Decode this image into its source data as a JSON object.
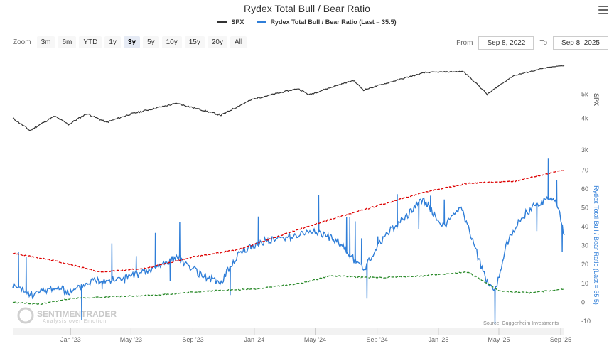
{
  "title": "Rydex Total Bull / Bear Ratio",
  "legend": [
    {
      "name": "SPX",
      "color": "#333333"
    },
    {
      "name": "Rydex Total Bull / Bear Ratio (Last = 35.5)",
      "color": "#2f7ed8"
    }
  ],
  "zoom": {
    "label": "Zoom",
    "buttons": [
      "3m",
      "6m",
      "YTD",
      "1y",
      "3y",
      "5y",
      "10y",
      "15y",
      "20y",
      "All"
    ],
    "active": "3y"
  },
  "range": {
    "from_label": "From",
    "from_value": "Sep 8, 2022",
    "to_label": "To",
    "to_value": "Sep 8, 2025"
  },
  "source": "Source: Guggenheim Investments",
  "watermark": {
    "line1": "SENTIMENTRADER",
    "line2": "Analysis over Emotion"
  },
  "chart_data": {
    "type": "line",
    "x_tick_labels": [
      "Jan '23",
      "May '23",
      "Sep '23",
      "Jan '24",
      "May '24",
      "Sep '24",
      "Jan '25",
      "May '25",
      "Sep '25"
    ],
    "x_range": [
      "2022-09-08",
      "2025-09-08"
    ],
    "panes": [
      {
        "name": "spx",
        "ylabel": "SPX",
        "scale": "log",
        "y_ticks": [
          3000,
          4000,
          5000
        ],
        "y_tick_labels": [
          "3k",
          "4k",
          "5k"
        ],
        "series": [
          {
            "name": "SPX",
            "color": "#333333",
            "points": [
              [
                "2022-09-08",
                4006
              ],
              [
                "2022-10-12",
                3577
              ],
              [
                "2022-11-30",
                4080
              ],
              [
                "2022-12-28",
                3783
              ],
              [
                "2023-02-02",
                4179
              ],
              [
                "2023-03-13",
                3855
              ],
              [
                "2023-05-01",
                4168
              ],
              [
                "2023-07-31",
                4588
              ],
              [
                "2023-10-27",
                4117
              ],
              [
                "2023-12-29",
                4770
              ],
              [
                "2024-03-28",
                5254
              ],
              [
                "2024-04-19",
                4967
              ],
              [
                "2024-07-16",
                5667
              ],
              [
                "2024-08-05",
                5186
              ],
              [
                "2024-12-06",
                6090
              ],
              [
                "2025-02-19",
                6144
              ],
              [
                "2025-04-08",
                4982
              ],
              [
                "2025-05-30",
                5912
              ],
              [
                "2025-07-31",
                6339
              ],
              [
                "2025-09-08",
                6495
              ]
            ]
          }
        ]
      },
      {
        "name": "ratio",
        "ylabel": "Rydex Total Bull / Bear Ratio (Last = 35.5)",
        "y_ticks": [
          -10,
          0,
          10,
          20,
          30,
          40,
          50,
          60,
          70
        ],
        "y_range": [
          -10,
          75
        ],
        "series": [
          {
            "name": "Rydex Total Bull / Bear Ratio (Last = 35.5)",
            "color": "#2f7ed8",
            "points": [
              [
                "2022-09-08",
                9
              ],
              [
                "2022-10-15",
                4
              ],
              [
                "2022-12-01",
                8
              ],
              [
                "2023-01-01",
                5
              ],
              [
                "2023-02-15",
                12
              ],
              [
                "2023-04-01",
                12
              ],
              [
                "2023-06-01",
                16
              ],
              [
                "2023-08-01",
                24
              ],
              [
                "2023-09-15",
                15
              ],
              [
                "2023-10-25",
                10
              ],
              [
                "2023-12-01",
                26
              ],
              [
                "2024-01-15",
                32
              ],
              [
                "2024-03-15",
                35
              ],
              [
                "2024-05-01",
                38
              ],
              [
                "2024-06-15",
                32
              ],
              [
                "2024-08-05",
                17
              ],
              [
                "2024-09-15",
                35
              ],
              [
                "2024-11-01",
                46
              ],
              [
                "2024-12-01",
                55
              ],
              [
                "2024-12-20",
                48
              ],
              [
                "2025-01-10",
                40
              ],
              [
                "2025-02-15",
                50
              ],
              [
                "2025-04-08",
                10
              ],
              [
                "2025-04-25",
                7
              ],
              [
                "2025-05-15",
                30
              ],
              [
                "2025-06-15",
                45
              ],
              [
                "2025-07-15",
                52
              ],
              [
                "2025-08-15",
                56
              ],
              [
                "2025-08-30",
                47
              ],
              [
                "2025-09-08",
                35.5
              ]
            ]
          },
          {
            "name": "upper band",
            "color": "#dd0000",
            "dash": "dashed",
            "points": [
              [
                "2022-09-08",
                26
              ],
              [
                "2022-12-01",
                22
              ],
              [
                "2023-03-01",
                16
              ],
              [
                "2023-06-01",
                18
              ],
              [
                "2023-09-01",
                24
              ],
              [
                "2023-12-01",
                28
              ],
              [
                "2024-03-01",
                36
              ],
              [
                "2024-06-01",
                44
              ],
              [
                "2024-09-01",
                51
              ],
              [
                "2024-12-01",
                58
              ],
              [
                "2025-03-01",
                63
              ],
              [
                "2025-06-01",
                64
              ],
              [
                "2025-09-08",
                70
              ]
            ]
          },
          {
            "name": "lower band",
            "color": "#2a8a2a",
            "dash": "dashed",
            "points": [
              [
                "2022-09-08",
                0
              ],
              [
                "2022-11-01",
                -1
              ],
              [
                "2023-01-01",
                2
              ],
              [
                "2023-04-01",
                3
              ],
              [
                "2023-07-01",
                4
              ],
              [
                "2023-10-01",
                6
              ],
              [
                "2024-01-01",
                7
              ],
              [
                "2024-04-01",
                10
              ],
              [
                "2024-06-01",
                14
              ],
              [
                "2024-09-01",
                13
              ],
              [
                "2024-12-01",
                14
              ],
              [
                "2025-03-01",
                16
              ],
              [
                "2025-05-01",
                6
              ],
              [
                "2025-07-01",
                5
              ],
              [
                "2025-09-08",
                7
              ]
            ]
          }
        ]
      }
    ],
    "grid": false
  }
}
